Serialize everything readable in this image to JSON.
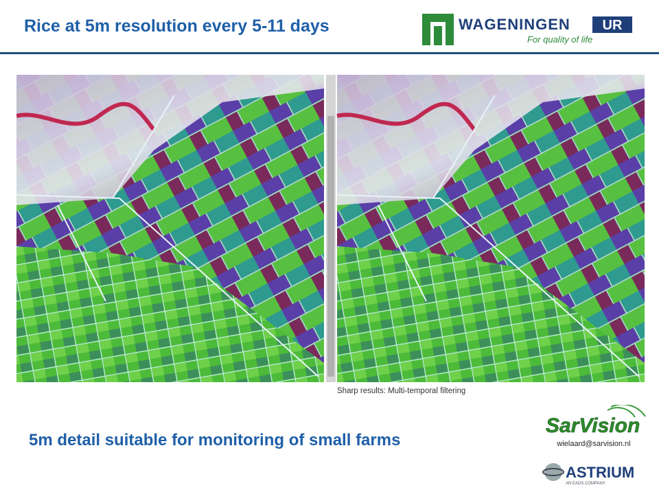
{
  "header": {
    "title": "Rice at 5m resolution every 5-11 days",
    "logo": {
      "name": "WAGENINGEN",
      "suffix": "UR",
      "tagline": "For quality of life"
    }
  },
  "caption": "Sharp results: Multi-temporal filtering",
  "subtitle": "5m detail suitable for monitoring of small farms",
  "sarvision": {
    "name": "SarVision",
    "email": "wielaard@sarvision.nl"
  },
  "astrium": {
    "name": "ASTRIUM",
    "tagline": "AN EADS COMPANY"
  }
}
